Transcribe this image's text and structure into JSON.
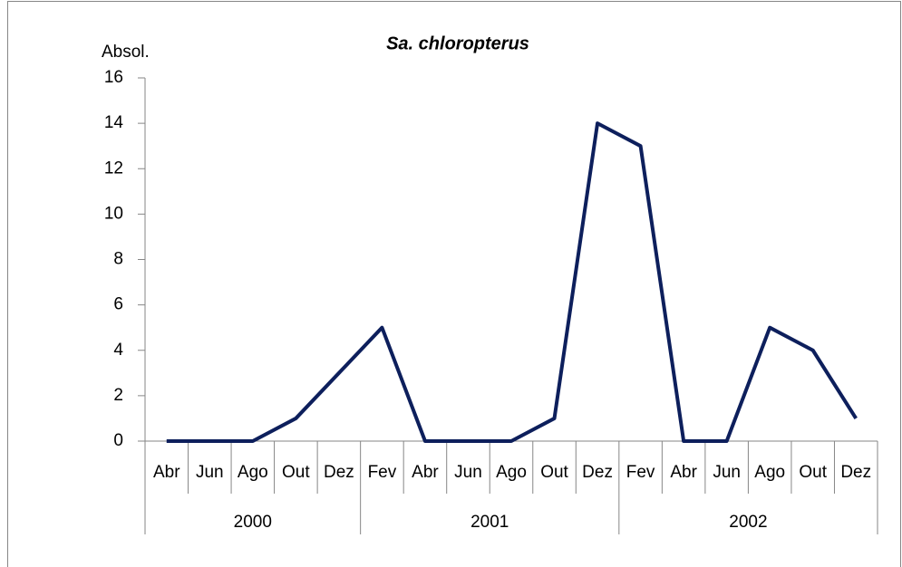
{
  "chart_data": {
    "type": "line",
    "title": "Sa. chloropterus",
    "ylabel": "Absol.",
    "category_groups": [
      {
        "label": "2000",
        "categories": [
          "Abr",
          "Jun",
          "Ago",
          "Out",
          "Dez"
        ]
      },
      {
        "label": "2001",
        "categories": [
          "Fev",
          "Abr",
          "Jun",
          "Ago",
          "Out",
          "Dez"
        ]
      },
      {
        "label": "2002",
        "categories": [
          "Fev",
          "Abr",
          "Jun",
          "Ago",
          "Out",
          "Dez"
        ]
      }
    ],
    "values": [
      0,
      0,
      0,
      1,
      3,
      5,
      0,
      0,
      0,
      1,
      14,
      13,
      0,
      0,
      5,
      4,
      1
    ],
    "color": "#0d1f5c",
    "ylim": [
      0,
      16
    ],
    "yticks": [
      0,
      2,
      4,
      6,
      8,
      10,
      12,
      14,
      16
    ]
  }
}
